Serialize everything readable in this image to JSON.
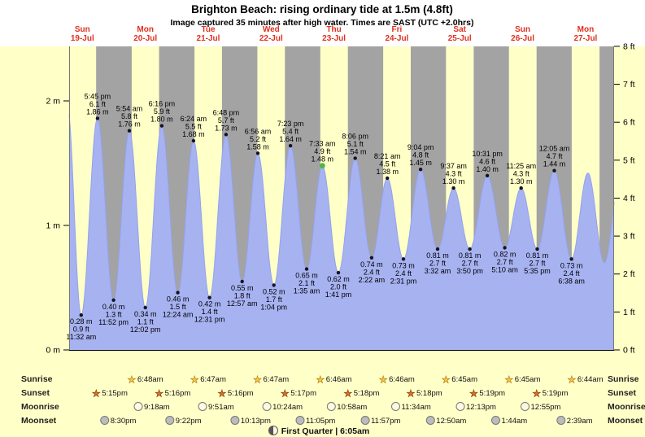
{
  "header": {
    "title": "Brighton Beach: rising ordinary tide at 1.5m (4.8ft)",
    "subtitle": "Image captured 35 minutes after high water. Times are SAST (UTC +2.0hrs)"
  },
  "chart_data": {
    "type": "area",
    "title": "Brighton Beach tide curve",
    "ylabel_left": "meters",
    "ylabel_right": "feet",
    "ylim_m": [
      0,
      2.44
    ],
    "time_axis": {
      "start_hour": 6.93,
      "end_hour": 214.9,
      "hour_origin": "00:00 Sun 19-Jul"
    },
    "days": [
      {
        "label_day": "Sun",
        "label_date": "19-Jul",
        "noon_hour": 12
      },
      {
        "label_day": "Mon",
        "label_date": "20-Jul",
        "noon_hour": 36
      },
      {
        "label_day": "Tue",
        "label_date": "21-Jul",
        "noon_hour": 60
      },
      {
        "label_day": "Wed",
        "label_date": "22-Jul",
        "noon_hour": 84
      },
      {
        "label_day": "Thu",
        "label_date": "23-Jul",
        "noon_hour": 108
      },
      {
        "label_day": "Fri",
        "label_date": "24-Jul",
        "noon_hour": 132
      },
      {
        "label_day": "Sat",
        "label_date": "25-Jul",
        "noon_hour": 156
      },
      {
        "label_day": "Sun",
        "label_date": "26-Jul",
        "noon_hour": 180
      },
      {
        "label_day": "Mon",
        "label_date": "27-Jul",
        "noon_hour": 204
      }
    ],
    "y_axis_left": {
      "labels": [
        "0 m",
        "1 m",
        "2 m"
      ],
      "values_m": [
        0,
        1,
        2
      ]
    },
    "y_axis_right": {
      "labels": [
        "0 ft",
        "1 ft",
        "2 ft",
        "3 ft",
        "4 ft",
        "5 ft",
        "6 ft",
        "7 ft",
        "8 ft"
      ],
      "values_ft": [
        0,
        1,
        2,
        3,
        4,
        5,
        6,
        7,
        8
      ]
    },
    "night_bands_hours": [
      [
        17.25,
        30.8
      ],
      [
        41.27,
        54.78
      ],
      [
        65.27,
        78.78
      ],
      [
        89.28,
        102.77
      ],
      [
        113.3,
        126.77
      ],
      [
        137.3,
        150.75
      ],
      [
        161.32,
        174.75
      ],
      [
        185.32,
        198.73
      ],
      [
        209.33,
        214.9
      ]
    ],
    "tide_extremes": [
      {
        "type": "low",
        "time_label": "11:32 am",
        "hour": 11.53,
        "height_m": 0.28,
        "height_ft": 0.9
      },
      {
        "type": "high",
        "time_label": "5:45 pm",
        "hour": 17.75,
        "height_m": 1.86,
        "height_ft": 6.1
      },
      {
        "type": "low",
        "time_label": "11:52 pm",
        "hour": 23.87,
        "height_m": 0.4,
        "height_ft": 1.3
      },
      {
        "type": "high",
        "time_label": "5:54 am",
        "hour": 29.9,
        "height_m": 1.76,
        "height_ft": 5.8
      },
      {
        "type": "low",
        "time_label": "12:02 pm",
        "hour": 36.03,
        "height_m": 0.34,
        "height_ft": 1.1
      },
      {
        "type": "high",
        "time_label": "6:16 pm",
        "hour": 42.27,
        "height_m": 1.8,
        "height_ft": 5.9
      },
      {
        "type": "low",
        "time_label": "12:24 am",
        "hour": 48.4,
        "height_m": 0.46,
        "height_ft": 1.5
      },
      {
        "type": "high",
        "time_label": "6:24 am",
        "hour": 54.4,
        "height_m": 1.68,
        "height_ft": 5.5
      },
      {
        "type": "low",
        "time_label": "12:31 pm",
        "hour": 60.52,
        "height_m": 0.42,
        "height_ft": 1.4
      },
      {
        "type": "high",
        "time_label": "6:48 pm",
        "hour": 66.8,
        "height_m": 1.73,
        "height_ft": 5.7
      },
      {
        "type": "low",
        "time_label": "12:57 am",
        "hour": 72.95,
        "height_m": 0.55,
        "height_ft": 1.8
      },
      {
        "type": "high",
        "time_label": "6:56 am",
        "hour": 78.93,
        "height_m": 1.58,
        "height_ft": 5.2
      },
      {
        "type": "low",
        "time_label": "1:04 pm",
        "hour": 85.07,
        "height_m": 0.52,
        "height_ft": 1.7
      },
      {
        "type": "high",
        "time_label": "7:23 pm",
        "hour": 91.38,
        "height_m": 1.64,
        "height_ft": 5.4
      },
      {
        "type": "low",
        "time_label": "1:35 am",
        "hour": 97.58,
        "height_m": 0.65,
        "height_ft": 2.1
      },
      {
        "type": "high",
        "time_label": "7:33 am",
        "hour": 103.55,
        "height_m": 1.48,
        "height_ft": 4.9,
        "current": true
      },
      {
        "type": "low",
        "time_label": "1:41 pm",
        "hour": 109.68,
        "height_m": 0.62,
        "height_ft": 2.0
      },
      {
        "type": "high",
        "time_label": "8:06 pm",
        "hour": 116.1,
        "height_m": 1.54,
        "height_ft": 5.1
      },
      {
        "type": "low",
        "time_label": "2:22 am",
        "hour": 122.37,
        "height_m": 0.74,
        "height_ft": 2.4
      },
      {
        "type": "high",
        "time_label": "8:21 am",
        "hour": 128.35,
        "height_m": 1.38,
        "height_ft": 4.5
      },
      {
        "type": "low",
        "time_label": "2:31 pm",
        "hour": 134.52,
        "height_m": 0.73,
        "height_ft": 2.4
      },
      {
        "type": "high",
        "time_label": "9:04 pm",
        "hour": 141.07,
        "height_m": 1.45,
        "height_ft": 4.8
      },
      {
        "type": "low",
        "time_label": "3:32 am",
        "hour": 147.53,
        "height_m": 0.81,
        "height_ft": 2.7
      },
      {
        "type": "high",
        "time_label": "9:37 am",
        "hour": 153.62,
        "height_m": 1.3,
        "height_ft": 4.3
      },
      {
        "type": "low",
        "time_label": "3:50 pm",
        "hour": 159.83,
        "height_m": 0.81,
        "height_ft": 2.7
      },
      {
        "type": "high",
        "time_label": "10:31 pm",
        "hour": 166.52,
        "height_m": 1.4,
        "height_ft": 4.6
      },
      {
        "type": "low",
        "time_label": "5:10 am",
        "hour": 173.17,
        "height_m": 0.82,
        "height_ft": 2.7
      },
      {
        "type": "high",
        "time_label": "11:25 am",
        "hour": 179.42,
        "height_m": 1.3,
        "height_ft": 4.3
      },
      {
        "type": "low",
        "time_label": "5:35 pm",
        "hour": 185.58,
        "height_m": 0.81,
        "height_ft": 2.7
      },
      {
        "type": "high",
        "time_label": "12:05 am",
        "hour": 192.08,
        "height_m": 1.44,
        "height_ft": 4.7
      },
      {
        "type": "low",
        "time_label": "6:38 am",
        "hour": 198.63,
        "height_m": 0.73,
        "height_ft": 2.4
      }
    ],
    "curve_anchors_pre": [
      {
        "hour": 6.2,
        "height_m": 1.97
      }
    ],
    "curve_anchors_post": [
      {
        "hour": 204.9,
        "height_m": 1.42
      },
      {
        "hour": 211.2,
        "height_m": 0.7
      },
      {
        "hour": 217.4,
        "height_m": 1.45
      }
    ],
    "colors": {
      "page_bg": "#ffffc8",
      "header_bg": "#ffffff",
      "day_band": "#ffffc8",
      "night_band": "#a3a3a3",
      "tide_fill": "#a7b2f1",
      "tide_stroke": "#93a2ee",
      "day_label": "#e0301e",
      "annotation_text": "#000000",
      "extreme_dot": "#141420",
      "current_marker": "#4fb648",
      "sunrise_star": "#f8c83c",
      "sunset_star": "#df6f26",
      "moonrise_circle": "#fdfae2",
      "moonset_circle": "#bcbcbc",
      "axis": "#000000"
    }
  },
  "astronomy": {
    "rows": [
      {
        "label": "Sunrise",
        "icon": "sunrise-star-icon",
        "events": [
          {
            "time": "6:48am",
            "hour": 30.8
          },
          {
            "time": "6:47am",
            "hour": 54.78
          },
          {
            "time": "6:47am",
            "hour": 78.78
          },
          {
            "time": "6:46am",
            "hour": 102.77
          },
          {
            "time": "6:46am",
            "hour": 126.77
          },
          {
            "time": "6:45am",
            "hour": 150.75
          },
          {
            "time": "6:45am",
            "hour": 174.75
          },
          {
            "time": "6:44am",
            "hour": 198.73
          }
        ]
      },
      {
        "label": "Sunset",
        "icon": "sunset-star-icon",
        "events": [
          {
            "time": "5:15pm",
            "hour": 17.25
          },
          {
            "time": "5:16pm",
            "hour": 41.27
          },
          {
            "time": "5:16pm",
            "hour": 65.27
          },
          {
            "time": "5:17pm",
            "hour": 89.28
          },
          {
            "time": "5:18pm",
            "hour": 113.3
          },
          {
            "time": "5:18pm",
            "hour": 137.3
          },
          {
            "time": "5:19pm",
            "hour": 161.32
          },
          {
            "time": "5:19pm",
            "hour": 185.32
          }
        ]
      },
      {
        "label": "Moonrise",
        "icon": "moonrise-icon",
        "events": [
          {
            "time": "9:18am",
            "hour": 33.3
          },
          {
            "time": "9:51am",
            "hour": 57.85
          },
          {
            "time": "10:24am",
            "hour": 82.4
          },
          {
            "time": "10:58am",
            "hour": 106.97
          },
          {
            "time": "11:34am",
            "hour": 131.57
          },
          {
            "time": "12:13pm",
            "hour": 156.22
          },
          {
            "time": "12:55pm",
            "hour": 180.92
          }
        ]
      },
      {
        "label": "Moonset",
        "icon": "moonset-icon",
        "events": [
          {
            "time": "8:30pm",
            "hour": 20.5
          },
          {
            "time": "9:22pm",
            "hour": 45.37
          },
          {
            "time": "10:13pm",
            "hour": 70.22
          },
          {
            "time": "11:05pm",
            "hour": 95.08
          },
          {
            "time": "11:57pm",
            "hour": 119.95
          },
          {
            "time": "12:50am",
            "hour": 144.83
          },
          {
            "time": "1:44am",
            "hour": 169.73
          },
          {
            "time": "2:39am",
            "hour": 194.65
          }
        ]
      }
    ]
  },
  "footer": {
    "moon_phase_label": "First Quarter | 6:05am"
  }
}
